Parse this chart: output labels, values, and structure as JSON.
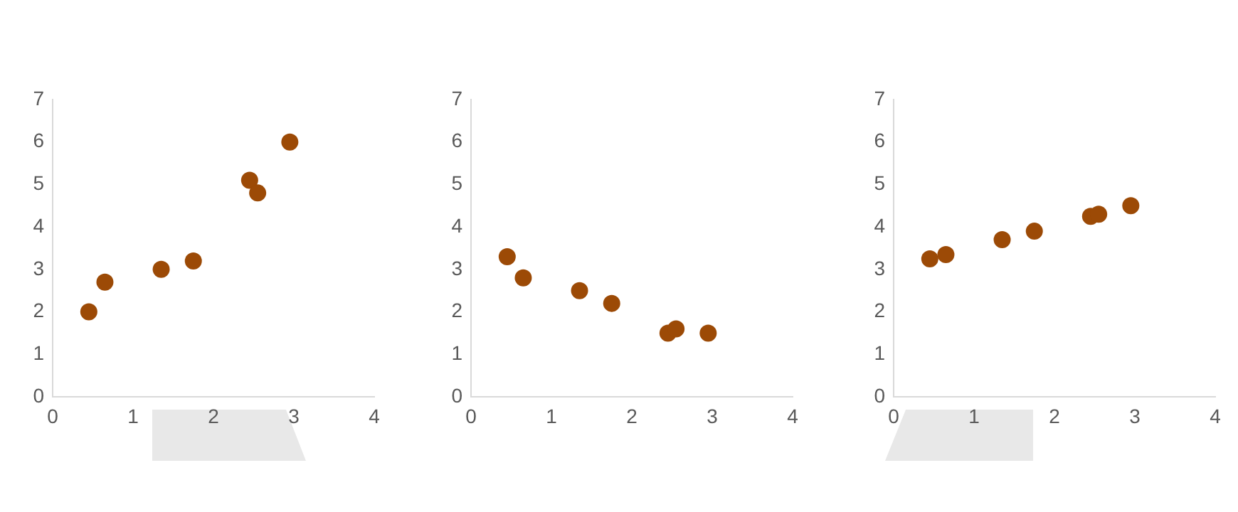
{
  "chart_data": [
    {
      "type": "scatter",
      "x": [
        0.45,
        0.65,
        1.35,
        1.75,
        2.45,
        2.55,
        2.95
      ],
      "values": [
        2.0,
        2.7,
        3.0,
        3.2,
        5.1,
        4.8,
        6.0
      ],
      "color": "#9c4a06",
      "xlim": [
        0,
        4
      ],
      "xticks": [
        0,
        1,
        2,
        3,
        4
      ],
      "ylim": [
        0,
        7
      ],
      "yticks": [
        0,
        1,
        2,
        3,
        4,
        5,
        6,
        7
      ],
      "grid": false,
      "marker": "circle"
    },
    {
      "type": "scatter",
      "x": [
        0.45,
        0.65,
        1.35,
        1.75,
        2.45,
        2.55,
        2.95
      ],
      "values": [
        3.3,
        2.8,
        2.5,
        2.2,
        1.5,
        1.6,
        1.5
      ],
      "color": "#9c4a06",
      "xlim": [
        0,
        4
      ],
      "xticks": [
        0,
        1,
        2,
        3,
        4
      ],
      "ylim": [
        0,
        7
      ],
      "yticks": [
        0,
        1,
        2,
        3,
        4,
        5,
        6,
        7
      ],
      "grid": false,
      "marker": "circle"
    },
    {
      "type": "scatter",
      "x": [
        0.45,
        0.65,
        1.35,
        1.75,
        2.45,
        2.55,
        2.95
      ],
      "values": [
        3.25,
        3.35,
        3.7,
        3.9,
        4.25,
        4.3,
        4.5
      ],
      "color": "#9c4a06",
      "xlim": [
        0,
        4
      ],
      "xticks": [
        0,
        1,
        2,
        3,
        4
      ],
      "ylim": [
        0,
        7
      ],
      "yticks": [
        0,
        1,
        2,
        3,
        4,
        5,
        6,
        7
      ],
      "grid": false,
      "marker": "circle"
    }
  ]
}
